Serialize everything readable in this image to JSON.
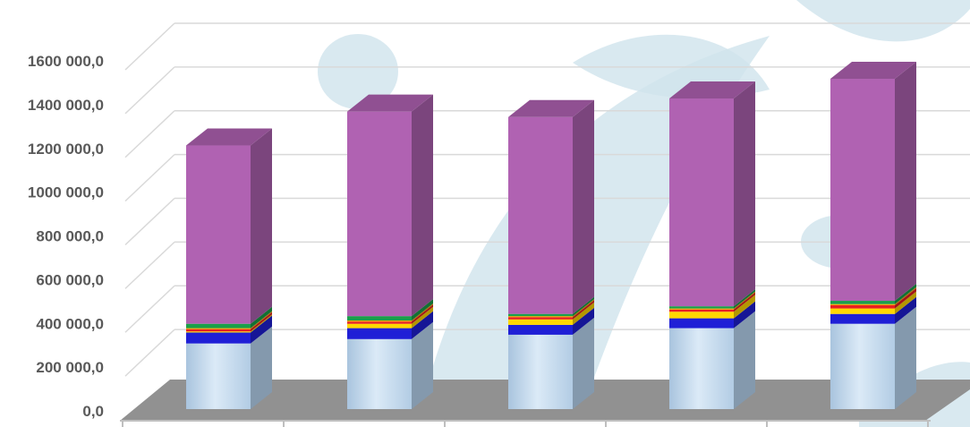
{
  "chart_data": {
    "type": "bar",
    "stacked": true,
    "three_d": true,
    "title": "",
    "xlabel": "",
    "ylabel": "",
    "ylim": [
      0,
      1600000
    ],
    "yticks": [
      {
        "value": 0,
        "label": "0,0"
      },
      {
        "value": 200000,
        "label": "200 000,0"
      },
      {
        "value": 400000,
        "label": "400 000,0"
      },
      {
        "value": 600000,
        "label": "600 000,0"
      },
      {
        "value": 800000,
        "label": "800 000,0"
      },
      {
        "value": 1000000,
        "label": "1000 000,0"
      },
      {
        "value": 1200000,
        "label": "1200 000,0"
      },
      {
        "value": 1400000,
        "label": "1400 000,0"
      },
      {
        "value": 1600000,
        "label": "1600 000,0"
      }
    ],
    "grid": true,
    "legend": "none",
    "categories": [
      "",
      "",
      "",
      "",
      ""
    ],
    "series": [
      {
        "values": [
          300000,
          320000,
          340000,
          370000,
          390000
        ],
        "color": "#b9d3ea"
      },
      {
        "values": [
          50000,
          50000,
          45000,
          45000,
          45000
        ],
        "color": "#1f1fd6"
      },
      {
        "values": [
          5000,
          20000,
          25000,
          30000,
          25000
        ],
        "color": "#ffd800"
      },
      {
        "values": [
          10000,
          10000,
          10000,
          10000,
          15000
        ],
        "color": "#e82020"
      },
      {
        "values": [
          5000,
          5000,
          5000,
          5000,
          5000
        ],
        "color": "#f7a000"
      },
      {
        "values": [
          20000,
          20000,
          10000,
          10000,
          15000
        ],
        "color": "#1aa04a"
      },
      {
        "values": [
          815000,
          935000,
          900000,
          950000,
          1015000
        ],
        "color": "#b062b2"
      }
    ]
  }
}
